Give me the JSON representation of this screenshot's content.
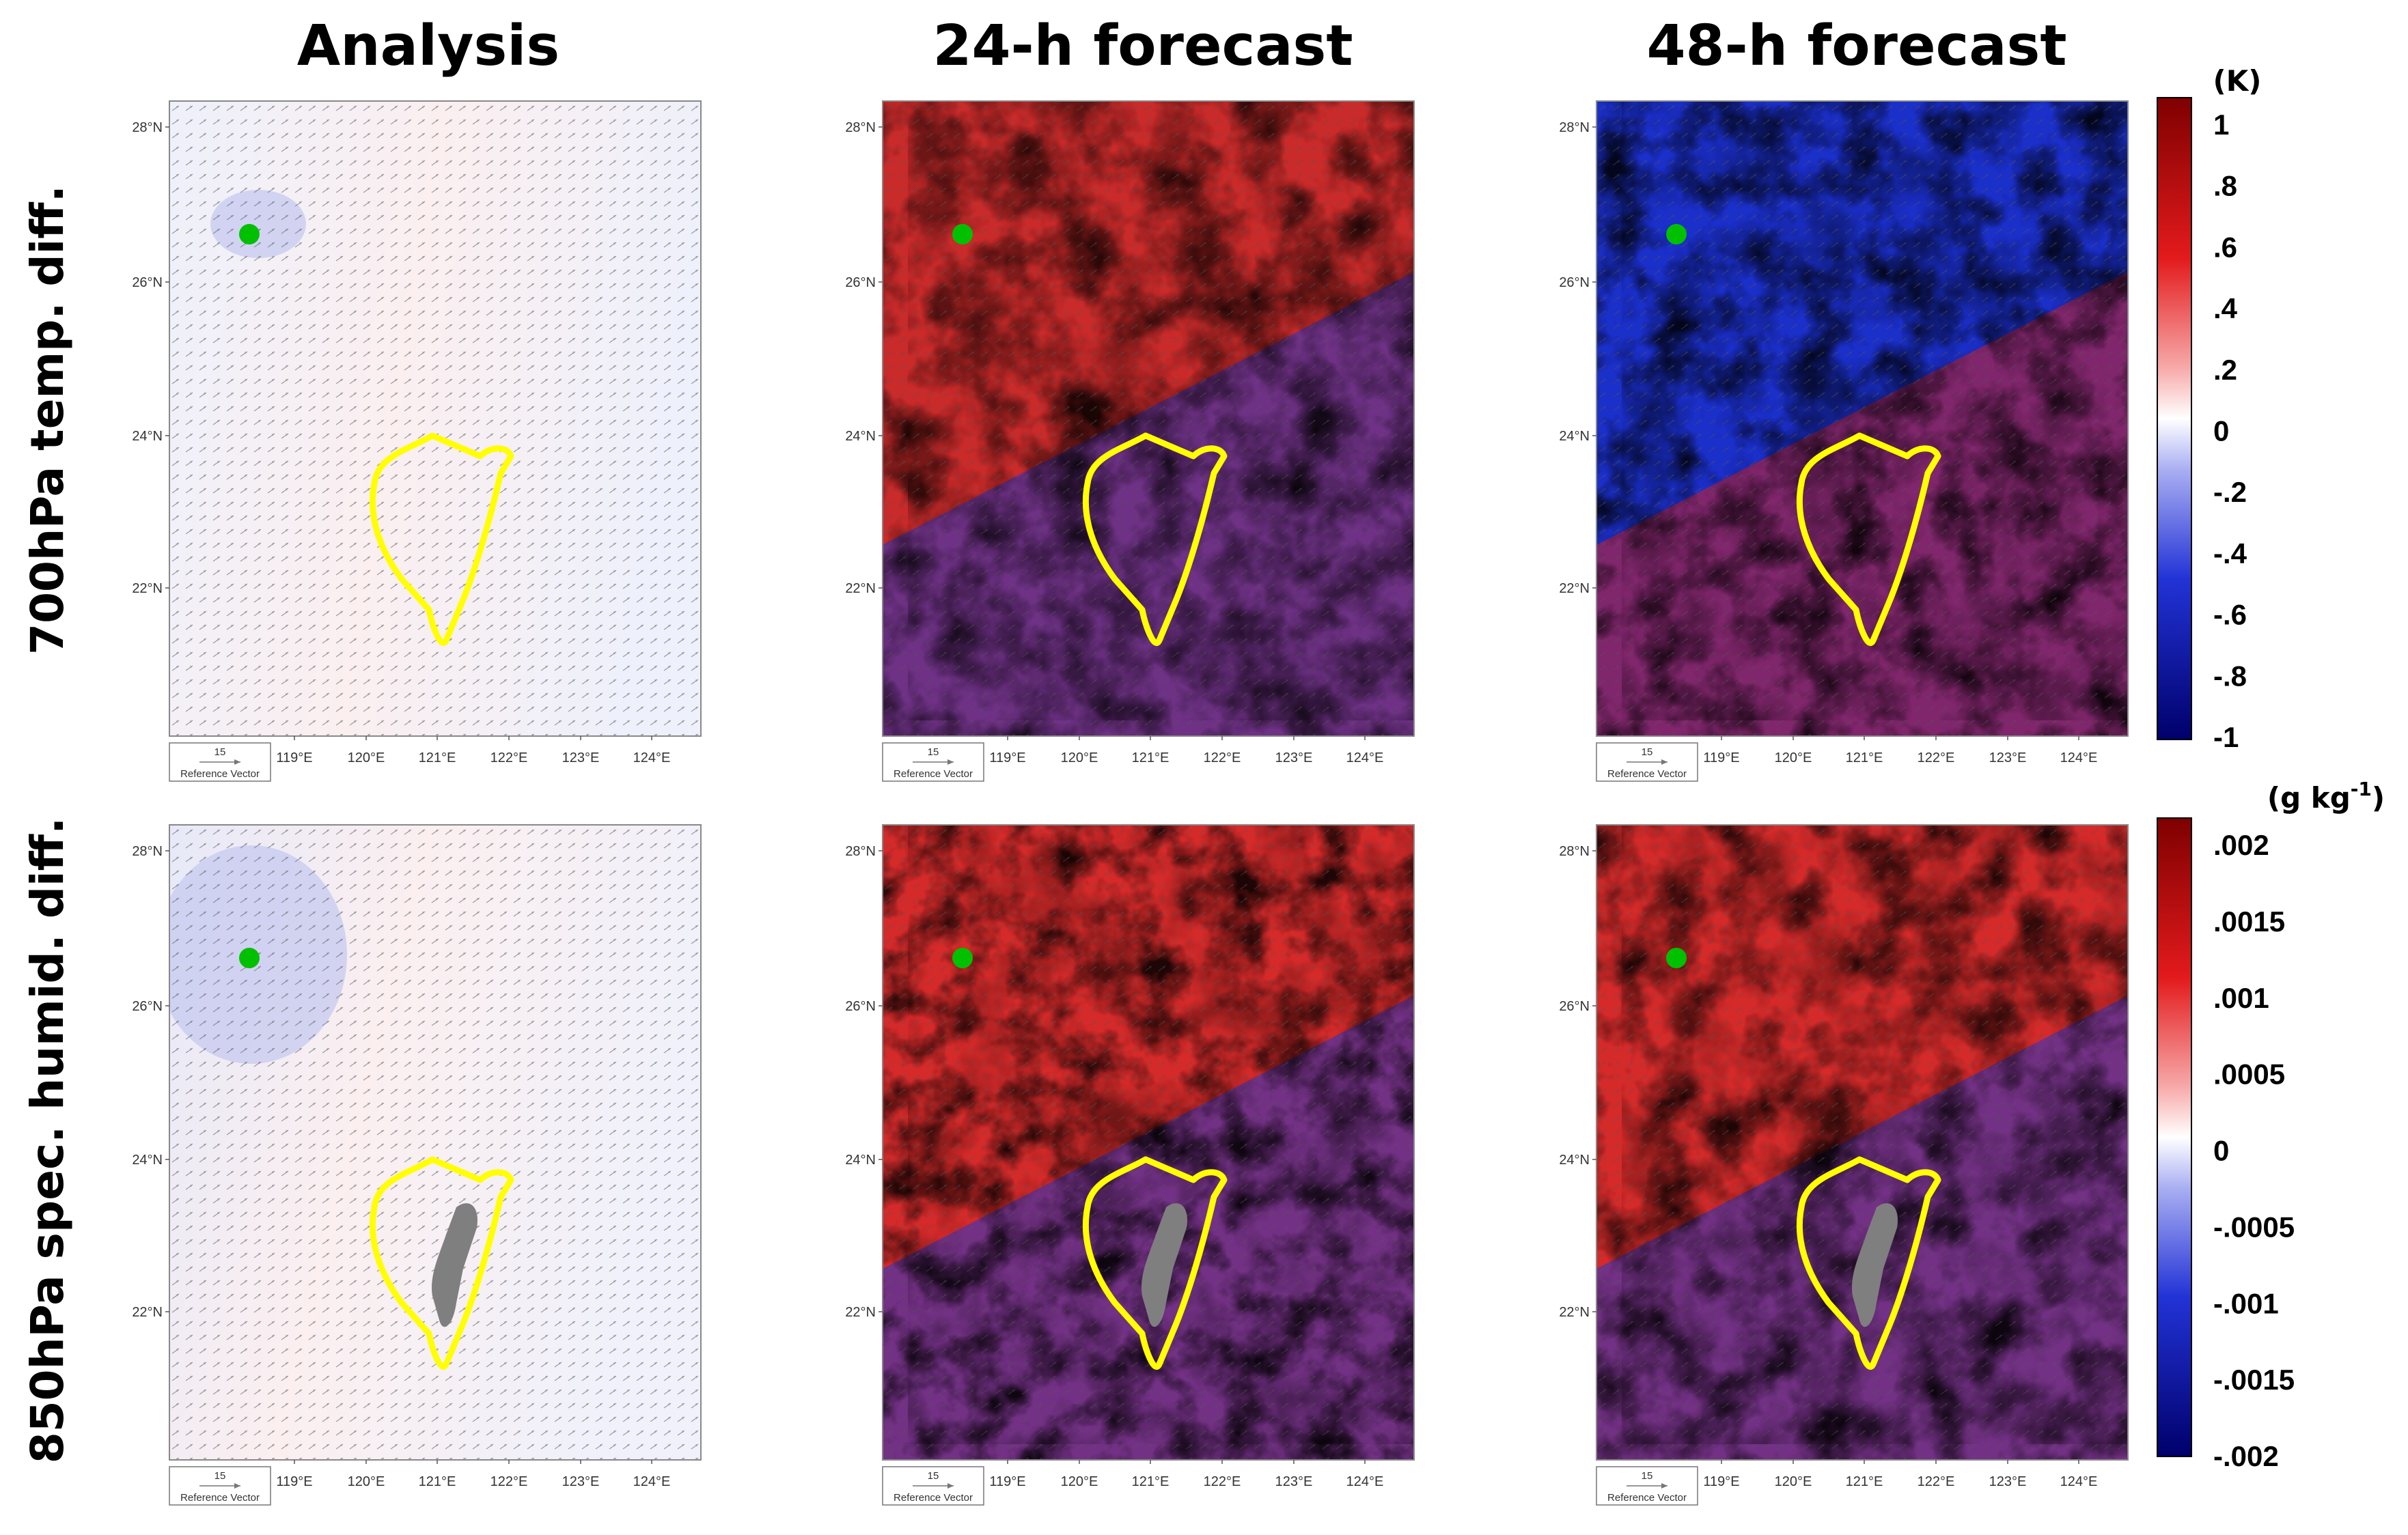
{
  "columns": [
    "Analysis",
    "24-h forecast",
    "48-h forecast"
  ],
  "rows": [
    "700hPa temp. diff.",
    "850hPa spec. humid. diff."
  ],
  "lat_ticks": [
    "28°N",
    "26°N",
    "24°N",
    "22°N"
  ],
  "lon_ticks": [
    "119°E",
    "120°E",
    "121°E",
    "122°E",
    "123°E",
    "124°E"
  ],
  "reference_vector": {
    "value": "15",
    "label": "Reference Vector"
  },
  "colorbars": [
    {
      "unit": "(K)",
      "labels": [
        "1",
        ".8",
        ".6",
        ".4",
        ".2",
        "0",
        "-.2",
        "-.4",
        "-.6",
        "-.8",
        "-1"
      ]
    },
    {
      "unit": "(g kg",
      "unit_sup": "-1",
      "unit_end": ")",
      "labels": [
        ".002",
        ".0015",
        ".001",
        ".0005",
        "0",
        "-.0005",
        "-.001",
        "-.0015",
        "-.002"
      ]
    }
  ],
  "colors": {
    "warm": "#d7191c",
    "cold": "#1a2fc4",
    "dark_warm": "#8b0000",
    "dark_cold": "#00007a",
    "coastline": "#ffff00",
    "marker": "#00c000",
    "terrain": "#7f7f7f"
  },
  "icons": {
    "station_marker": "green-dot-icon",
    "taiwan_outline": "coastline-icon",
    "reference_arrow": "arrow-icon"
  }
}
